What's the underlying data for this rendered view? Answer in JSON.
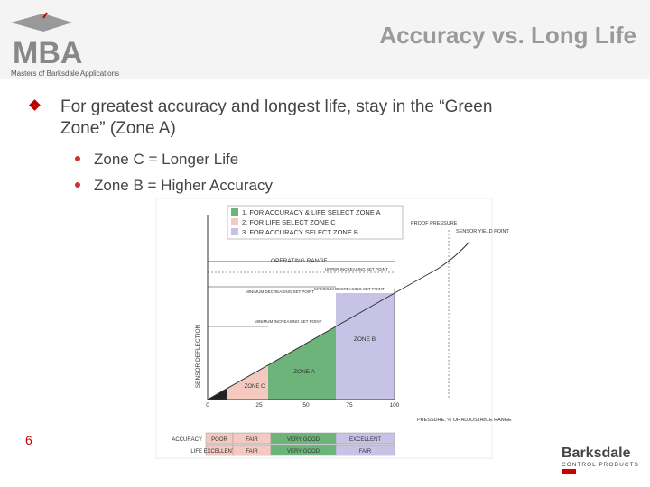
{
  "header": {
    "logo": "MBA",
    "logo_tagline": "Masters of Barksdale Applications",
    "title": "Accuracy vs. Long Life"
  },
  "body": {
    "bullet": "For greatest accuracy and longest life, stay in the “Green Zone” (Zone A)",
    "sub_bullets": [
      "Zone C = Longer Life",
      "Zone B = Higher Accuracy"
    ]
  },
  "diagram": {
    "legend": [
      "1. FOR ACCURACY & LIFE SELECT ZONE A",
      "2. FOR LIFE SELECT ZONE C",
      "3. FOR ACCURACY SELECT ZONE B"
    ],
    "y_label": "SENSOR DEFLECTION",
    "x_label": "PRESSURE, % OF ADJUSTABLE RANGE",
    "x_ticks": [
      "0",
      "25",
      "50",
      "75",
      "100"
    ],
    "annotations": {
      "proof": "PROOF PRESSURE",
      "yield": "SENSOR YIELD POINT",
      "range": "OPERATING RANGE",
      "upper_inc": "UPPER INCREASING SET POINT",
      "min_dec": "MINIMUM DECREASING SET POINT",
      "max_dec": "MAXIMUM DECREASING SET POINT",
      "min_inc": "MINIMUM INCREASING SET POINT"
    },
    "zones": {
      "a": "ZONE A",
      "b": "ZONE B",
      "c": "ZONE C"
    },
    "table": {
      "rows": [
        [
          "ACCURACY",
          "POOR",
          "FAIR",
          "VERY GOOD",
          "EXCELLENT"
        ],
        [
          "LIFE",
          "EXCELLENT",
          "FAIR",
          "VERY GOOD",
          "FAIR"
        ]
      ]
    }
  },
  "footer": {
    "page": "6",
    "brand": "Barksdale",
    "brand_sub": "CONTROL PRODUCTS"
  }
}
